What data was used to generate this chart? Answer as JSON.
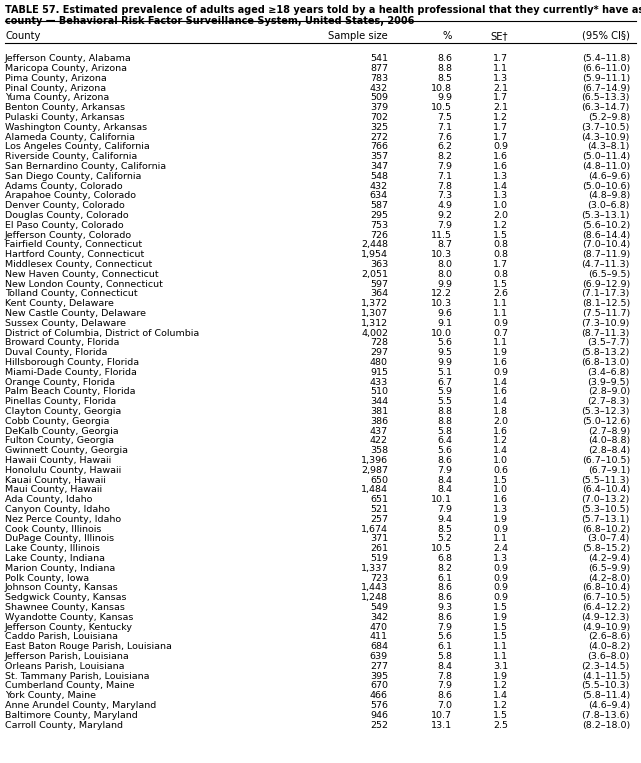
{
  "title_line1": "TABLE 57. Estimated prevalence of adults aged ≥18 years told by a health professional that they currently* have asthma, by",
  "title_line2": "county — Behavioral Risk Factor Surveillance System, United States, 2006",
  "headers": [
    "County",
    "Sample size",
    "%",
    "SE†",
    "(95% CI§)"
  ],
  "rows": [
    [
      "Jefferson County, Alabama",
      "541",
      "8.6",
      "1.7",
      "(5.4–11.8)"
    ],
    [
      "Maricopa County, Arizona",
      "877",
      "8.8",
      "1.1",
      "(6.6–11.0)"
    ],
    [
      "Pima County, Arizona",
      "783",
      "8.5",
      "1.3",
      "(5.9–11.1)"
    ],
    [
      "Pinal County, Arizona",
      "432",
      "10.8",
      "2.1",
      "(6.7–14.9)"
    ],
    [
      "Yuma County, Arizona",
      "509",
      "9.9",
      "1.7",
      "(6.5–13.3)"
    ],
    [
      "Benton County, Arkansas",
      "379",
      "10.5",
      "2.1",
      "(6.3–14.7)"
    ],
    [
      "Pulaski County, Arkansas",
      "702",
      "7.5",
      "1.2",
      "(5.2–9.8)"
    ],
    [
      "Washington County, Arkansas",
      "325",
      "7.1",
      "1.7",
      "(3.7–10.5)"
    ],
    [
      "Alameda County, California",
      "272",
      "7.6",
      "1.7",
      "(4.3–10.9)"
    ],
    [
      "Los Angeles County, California",
      "766",
      "6.2",
      "0.9",
      "(4.3–8.1)"
    ],
    [
      "Riverside County, California",
      "357",
      "8.2",
      "1.6",
      "(5.0–11.4)"
    ],
    [
      "San Bernardino County, California",
      "347",
      "7.9",
      "1.6",
      "(4.8–11.0)"
    ],
    [
      "San Diego County, California",
      "548",
      "7.1",
      "1.3",
      "(4.6–9.6)"
    ],
    [
      "Adams County, Colorado",
      "432",
      "7.8",
      "1.4",
      "(5.0–10.6)"
    ],
    [
      "Arapahoe County, Colorado",
      "634",
      "7.3",
      "1.3",
      "(4.8–9.8)"
    ],
    [
      "Denver County, Colorado",
      "587",
      "4.9",
      "1.0",
      "(3.0–6.8)"
    ],
    [
      "Douglas County, Colorado",
      "295",
      "9.2",
      "2.0",
      "(5.3–13.1)"
    ],
    [
      "El Paso County, Colorado",
      "753",
      "7.9",
      "1.2",
      "(5.6–10.2)"
    ],
    [
      "Jefferson County, Colorado",
      "726",
      "11.5",
      "1.5",
      "(8.6–14.4)"
    ],
    [
      "Fairfield County, Connecticut",
      "2,448",
      "8.7",
      "0.8",
      "(7.0–10.4)"
    ],
    [
      "Hartford County, Connecticut",
      "1,954",
      "10.3",
      "0.8",
      "(8.7–11.9)"
    ],
    [
      "Middlesex County, Connecticut",
      "363",
      "8.0",
      "1.7",
      "(4.7–11.3)"
    ],
    [
      "New Haven County, Connecticut",
      "2,051",
      "8.0",
      "0.8",
      "(6.5–9.5)"
    ],
    [
      "New London County, Connecticut",
      "597",
      "9.9",
      "1.5",
      "(6.9–12.9)"
    ],
    [
      "Tolland County, Connecticut",
      "364",
      "12.2",
      "2.6",
      "(7.1–17.3)"
    ],
    [
      "Kent County, Delaware",
      "1,372",
      "10.3",
      "1.1",
      "(8.1–12.5)"
    ],
    [
      "New Castle County, Delaware",
      "1,307",
      "9.6",
      "1.1",
      "(7.5–11.7)"
    ],
    [
      "Sussex County, Delaware",
      "1,312",
      "9.1",
      "0.9",
      "(7.3–10.9)"
    ],
    [
      "District of Columbia, District of Columbia",
      "4,002",
      "10.0",
      "0.7",
      "(8.7–11.3)"
    ],
    [
      "Broward County, Florida",
      "728",
      "5.6",
      "1.1",
      "(3.5–7.7)"
    ],
    [
      "Duval County, Florida",
      "297",
      "9.5",
      "1.9",
      "(5.8–13.2)"
    ],
    [
      "Hillsborough County, Florida",
      "480",
      "9.9",
      "1.6",
      "(6.8–13.0)"
    ],
    [
      "Miami-Dade County, Florida",
      "915",
      "5.1",
      "0.9",
      "(3.4–6.8)"
    ],
    [
      "Orange County, Florida",
      "433",
      "6.7",
      "1.4",
      "(3.9–9.5)"
    ],
    [
      "Palm Beach County, Florida",
      "510",
      "5.9",
      "1.6",
      "(2.8–9.0)"
    ],
    [
      "Pinellas County, Florida",
      "344",
      "5.5",
      "1.4",
      "(2.7–8.3)"
    ],
    [
      "Clayton County, Georgia",
      "381",
      "8.8",
      "1.8",
      "(5.3–12.3)"
    ],
    [
      "Cobb County, Georgia",
      "386",
      "8.8",
      "2.0",
      "(5.0–12.6)"
    ],
    [
      "DeKalb County, Georgia",
      "437",
      "5.8",
      "1.6",
      "(2.7–8.9)"
    ],
    [
      "Fulton County, Georgia",
      "422",
      "6.4",
      "1.2",
      "(4.0–8.8)"
    ],
    [
      "Gwinnett County, Georgia",
      "358",
      "5.6",
      "1.4",
      "(2.8–8.4)"
    ],
    [
      "Hawaii County, Hawaii",
      "1,396",
      "8.6",
      "1.0",
      "(6.7–10.5)"
    ],
    [
      "Honolulu County, Hawaii",
      "2,987",
      "7.9",
      "0.6",
      "(6.7–9.1)"
    ],
    [
      "Kauai County, Hawaii",
      "650",
      "8.4",
      "1.5",
      "(5.5–11.3)"
    ],
    [
      "Maui County, Hawaii",
      "1,484",
      "8.4",
      "1.0",
      "(6.4–10.4)"
    ],
    [
      "Ada County, Idaho",
      "651",
      "10.1",
      "1.6",
      "(7.0–13.2)"
    ],
    [
      "Canyon County, Idaho",
      "521",
      "7.9",
      "1.3",
      "(5.3–10.5)"
    ],
    [
      "Nez Perce County, Idaho",
      "257",
      "9.4",
      "1.9",
      "(5.7–13.1)"
    ],
    [
      "Cook County, Illinois",
      "1,674",
      "8.5",
      "0.9",
      "(6.8–10.2)"
    ],
    [
      "DuPage County, Illinois",
      "371",
      "5.2",
      "1.1",
      "(3.0–7.4)"
    ],
    [
      "Lake County, Illinois",
      "261",
      "10.5",
      "2.4",
      "(5.8–15.2)"
    ],
    [
      "Lake County, Indiana",
      "519",
      "6.8",
      "1.3",
      "(4.2–9.4)"
    ],
    [
      "Marion County, Indiana",
      "1,337",
      "8.2",
      "0.9",
      "(6.5–9.9)"
    ],
    [
      "Polk County, Iowa",
      "723",
      "6.1",
      "0.9",
      "(4.2–8.0)"
    ],
    [
      "Johnson County, Kansas",
      "1,443",
      "8.6",
      "0.9",
      "(6.8–10.4)"
    ],
    [
      "Sedgwick County, Kansas",
      "1,248",
      "8.6",
      "0.9",
      "(6.7–10.5)"
    ],
    [
      "Shawnee County, Kansas",
      "549",
      "9.3",
      "1.5",
      "(6.4–12.2)"
    ],
    [
      "Wyandotte County, Kansas",
      "342",
      "8.6",
      "1.9",
      "(4.9–12.3)"
    ],
    [
      "Jefferson County, Kentucky",
      "470",
      "7.9",
      "1.5",
      "(4.9–10.9)"
    ],
    [
      "Caddo Parish, Louisiana",
      "411",
      "5.6",
      "1.5",
      "(2.6–8.6)"
    ],
    [
      "East Baton Rouge Parish, Louisiana",
      "684",
      "6.1",
      "1.1",
      "(4.0–8.2)"
    ],
    [
      "Jefferson Parish, Louisiana",
      "639",
      "5.8",
      "1.1",
      "(3.6–8.0)"
    ],
    [
      "Orleans Parish, Louisiana",
      "277",
      "8.4",
      "3.1",
      "(2.3–14.5)"
    ],
    [
      "St. Tammany Parish, Louisiana",
      "395",
      "7.8",
      "1.9",
      "(4.1–11.5)"
    ],
    [
      "Cumberland County, Maine",
      "670",
      "7.9",
      "1.2",
      "(5.5–10.3)"
    ],
    [
      "York County, Maine",
      "466",
      "8.6",
      "1.4",
      "(5.8–11.4)"
    ],
    [
      "Anne Arundel County, Maryland",
      "576",
      "7.0",
      "1.2",
      "(4.6–9.4)"
    ],
    [
      "Baltimore County, Maryland",
      "946",
      "10.7",
      "1.5",
      "(7.8–13.6)"
    ],
    [
      "Carroll County, Maryland",
      "252",
      "13.1",
      "2.5",
      "(8.2–18.0)"
    ]
  ],
  "bg_color": "#ffffff",
  "text_color": "#000000",
  "title_fontsize": 7.0,
  "header_fontsize": 7.2,
  "row_fontsize": 6.8
}
